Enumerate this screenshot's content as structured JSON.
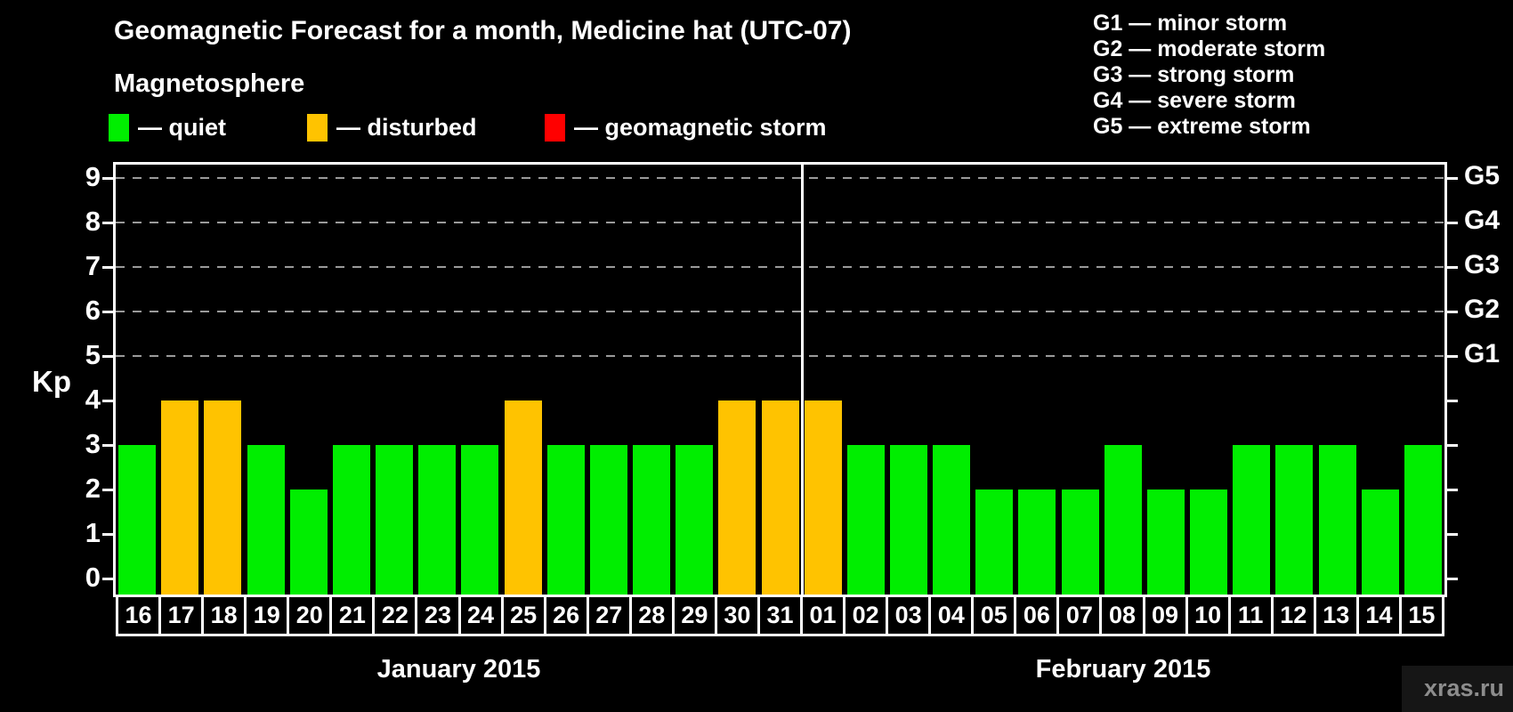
{
  "header": {
    "title": "Geomagnetic Forecast for a month, Medicine hat (UTC-07)",
    "subtitle": "Magnetosphere",
    "legend": [
      {
        "key": "quiet",
        "label": "— quiet",
        "color": "#00ee00"
      },
      {
        "key": "disturbed",
        "label": "— disturbed",
        "color": "#ffc300"
      },
      {
        "key": "storm",
        "label": "— geomagnetic storm",
        "color": "#ff0000"
      }
    ],
    "g_scale_legend": [
      "G1 — minor storm",
      "G2 — moderate storm",
      "G3 — strong storm",
      "G4 — severe storm",
      "G5 — extreme storm"
    ]
  },
  "chart_data": {
    "type": "bar",
    "ylabel": "Kp",
    "ylim": [
      -0.36,
      9.36
    ],
    "y_ticks": [
      0,
      1,
      2,
      3,
      4,
      5,
      6,
      7,
      8,
      9
    ],
    "gridlines_at": [
      5,
      6,
      7,
      8,
      9
    ],
    "right_axis": [
      {
        "kp": 5,
        "label": "G1"
      },
      {
        "kp": 6,
        "label": "G2"
      },
      {
        "kp": 7,
        "label": "G3"
      },
      {
        "kp": 8,
        "label": "G4"
      },
      {
        "kp": 9,
        "label": "G5"
      }
    ],
    "categories": [
      "16",
      "17",
      "18",
      "19",
      "20",
      "21",
      "22",
      "23",
      "24",
      "25",
      "26",
      "27",
      "28",
      "29",
      "30",
      "31",
      "01",
      "02",
      "03",
      "04",
      "05",
      "06",
      "07",
      "08",
      "09",
      "10",
      "11",
      "12",
      "13",
      "14",
      "15"
    ],
    "values": [
      3,
      4,
      4,
      3,
      2,
      3,
      3,
      3,
      3,
      4,
      3,
      3,
      3,
      3,
      4,
      4,
      4,
      3,
      3,
      3,
      2,
      2,
      2,
      3,
      2,
      2,
      3,
      3,
      3,
      2,
      3
    ],
    "statuses": [
      "quiet",
      "disturbed",
      "disturbed",
      "quiet",
      "quiet",
      "quiet",
      "quiet",
      "quiet",
      "quiet",
      "disturbed",
      "quiet",
      "quiet",
      "quiet",
      "quiet",
      "disturbed",
      "disturbed",
      "disturbed",
      "quiet",
      "quiet",
      "quiet",
      "quiet",
      "quiet",
      "quiet",
      "quiet",
      "quiet",
      "quiet",
      "quiet",
      "quiet",
      "quiet",
      "quiet",
      "quiet"
    ],
    "colors": {
      "quiet": "#00ee00",
      "disturbed": "#ffc300",
      "storm": "#ff0000"
    },
    "months": [
      {
        "label": "January 2015",
        "days": 16
      },
      {
        "label": "February 2015",
        "days": 15
      }
    ],
    "separator_after_index": 15
  },
  "watermark": "xras.ru"
}
